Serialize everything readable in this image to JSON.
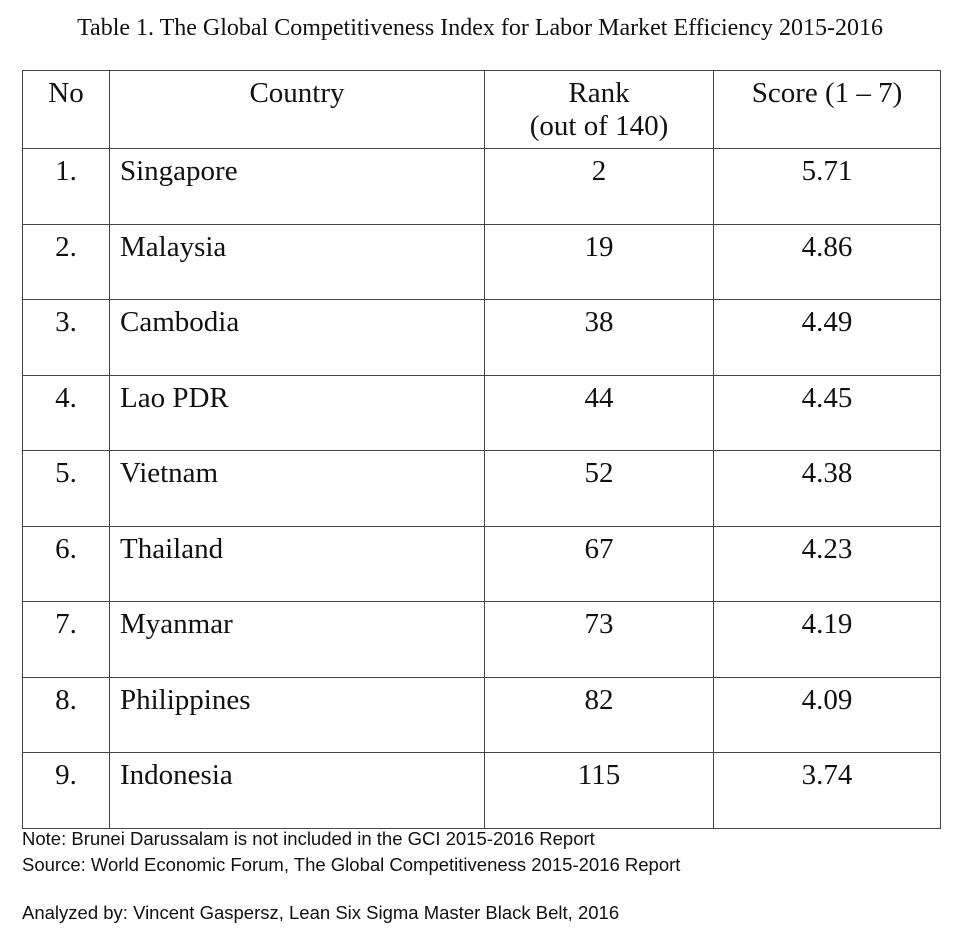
{
  "title": "Table 1. The Global Competitiveness Index for Labor Market Efficiency 2015-2016",
  "table": {
    "headers": {
      "no": "No",
      "country": "Country",
      "rank_line1": "Rank",
      "rank_line2": "(out of 140)",
      "score": "Score (1 – 7)"
    },
    "rows": [
      {
        "no": "1.",
        "country": "Singapore",
        "rank": "2",
        "score": "5.71"
      },
      {
        "no": "2.",
        "country": "Malaysia",
        "rank": "19",
        "score": "4.86"
      },
      {
        "no": "3.",
        "country": "Cambodia",
        "rank": "38",
        "score": "4.49"
      },
      {
        "no": "4.",
        "country": "Lao PDR",
        "rank": "44",
        "score": "4.45"
      },
      {
        "no": "5.",
        "country": "Vietnam",
        "rank": "52",
        "score": "4.38"
      },
      {
        "no": "6.",
        "country": "Thailand",
        "rank": "67",
        "score": "4.23"
      },
      {
        "no": "7.",
        "country": "Myanmar",
        "rank": "73",
        "score": "4.19"
      },
      {
        "no": "8.",
        "country": "Philippines",
        "rank": "82",
        "score": "4.09"
      },
      {
        "no": "9.",
        "country": "Indonesia",
        "rank": "115",
        "score": "3.74"
      }
    ]
  },
  "notes": {
    "note": "Note: Brunei Darussalam is not included in the GCI 2015-2016 Report",
    "source": "Source: World Economic Forum, The Global Competitiveness 2015-2016 Report",
    "analyzed": "Analyzed by: Vincent Gaspersz, Lean Six Sigma Master Black Belt, 2016"
  }
}
